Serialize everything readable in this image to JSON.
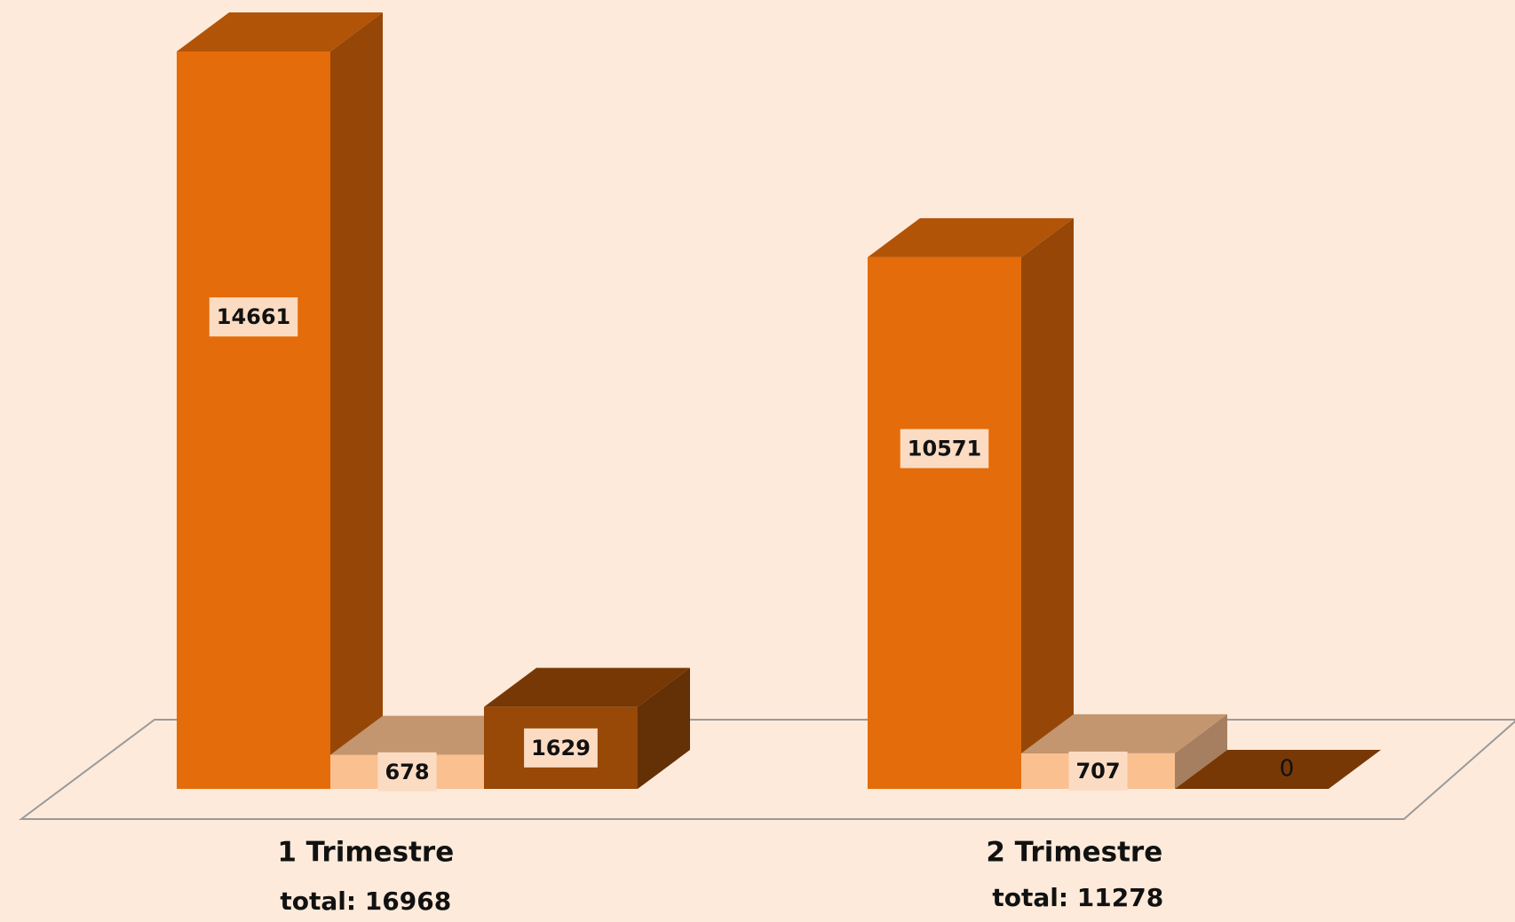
{
  "chart_data": {
    "type": "bar3d",
    "categories": [
      "1 Trimestre",
      "2 Trimestre"
    ],
    "category_totals": [
      "total: 16968",
      "total: 11278"
    ],
    "series": [
      {
        "color": "#e46c0a",
        "values": [
          14661,
          10571
        ]
      },
      {
        "color": "#fac090",
        "values": [
          678,
          707
        ]
      },
      {
        "color": "#984807",
        "values": [
          1629,
          0
        ]
      }
    ]
  }
}
